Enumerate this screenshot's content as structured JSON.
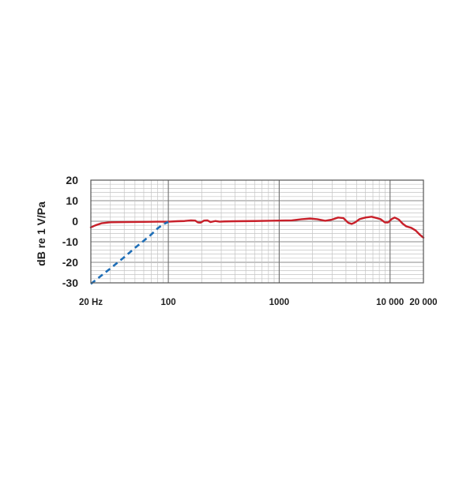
{
  "chart_data": {
    "type": "line",
    "title": "",
    "xlabel": "",
    "ylabel": "dB re 1 V/Pa",
    "x_scale": "log",
    "xlim": [
      20,
      20000
    ],
    "ylim": [
      -30,
      20
    ],
    "grid": true,
    "legend": "none",
    "y_ticks": [
      {
        "value": 20,
        "label": "20"
      },
      {
        "value": 10,
        "label": "10"
      },
      {
        "value": 0,
        "label": "0"
      },
      {
        "value": -10,
        "label": "-10"
      },
      {
        "value": -20,
        "label": "-20"
      },
      {
        "value": -30,
        "label": "-30"
      }
    ],
    "x_ticks": [
      {
        "value": 20,
        "label": "20 Hz"
      },
      {
        "value": 100,
        "label": "100"
      },
      {
        "value": 1000,
        "label": "1000"
      },
      {
        "value": 10000,
        "label": "10 000"
      },
      {
        "value": 20000,
        "label": "20 000"
      }
    ],
    "series": [
      {
        "color": "#c8202a",
        "style": "solid",
        "points": [
          [
            20,
            -3
          ],
          [
            22,
            -2
          ],
          [
            25,
            -1
          ],
          [
            30,
            -0.5
          ],
          [
            40,
            -0.4
          ],
          [
            60,
            -0.3
          ],
          [
            80,
            -0.2
          ],
          [
            100,
            -0.2
          ],
          [
            120,
            0
          ],
          [
            140,
            0.1
          ],
          [
            160,
            0.4
          ],
          [
            175,
            0.3
          ],
          [
            185,
            -0.6
          ],
          [
            195,
            -0.7
          ],
          [
            210,
            0.3
          ],
          [
            225,
            0.4
          ],
          [
            240,
            -0.4
          ],
          [
            265,
            0.1
          ],
          [
            290,
            -0.2
          ],
          [
            320,
            -0.1
          ],
          [
            400,
            0
          ],
          [
            600,
            0.1
          ],
          [
            800,
            0.2
          ],
          [
            1000,
            0.3
          ],
          [
            1300,
            0.4
          ],
          [
            1600,
            1.0
          ],
          [
            1900,
            1.3
          ],
          [
            2200,
            1.0
          ],
          [
            2600,
            0.2
          ],
          [
            3000,
            0.8
          ],
          [
            3400,
            1.8
          ],
          [
            3800,
            1.5
          ],
          [
            4200,
            -0.8
          ],
          [
            4500,
            -1.3
          ],
          [
            4800,
            -0.7
          ],
          [
            5300,
            1.0
          ],
          [
            6000,
            1.8
          ],
          [
            6800,
            2.2
          ],
          [
            7500,
            1.6
          ],
          [
            8200,
            1.0
          ],
          [
            9000,
            -0.6
          ],
          [
            9600,
            -0.6
          ],
          [
            10300,
            1.0
          ],
          [
            11000,
            1.8
          ],
          [
            12000,
            0.8
          ],
          [
            13000,
            -1.2
          ],
          [
            14000,
            -2.5
          ],
          [
            15500,
            -3.2
          ],
          [
            17000,
            -4.5
          ],
          [
            18500,
            -6.5
          ],
          [
            20000,
            -8
          ]
        ]
      },
      {
        "color": "#1f6fb8",
        "style": "dashed",
        "points": [
          [
            20,
            -30.5
          ],
          [
            30,
            -23
          ],
          [
            40,
            -17.5
          ],
          [
            50,
            -13
          ],
          [
            60,
            -9.5
          ],
          [
            70,
            -6.5
          ],
          [
            80,
            -3.5
          ],
          [
            90,
            -1.5
          ],
          [
            100,
            -0.3
          ]
        ]
      }
    ]
  }
}
